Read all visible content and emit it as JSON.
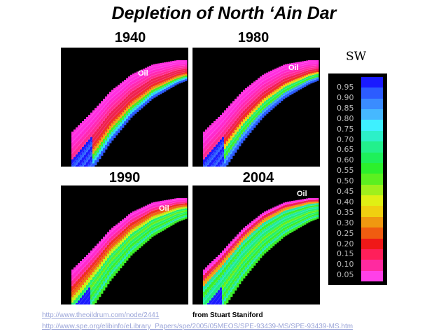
{
  "title": "Depletion of North ‘Ain Dar",
  "panels": [
    {
      "year": "1940",
      "oil_label": "Oil",
      "stage": 0
    },
    {
      "year": "1980",
      "oil_label": "Oil",
      "stage": 1
    },
    {
      "year": "1990",
      "oil_label": "Oil",
      "stage": 2
    },
    {
      "year": "2004",
      "oil_label": "Oil",
      "stage": 3
    }
  ],
  "legend": {
    "title": "SW",
    "ticks": [
      "0.95",
      "0.90",
      "0.85",
      "0.80",
      "0.75",
      "0.70",
      "0.65",
      "0.60",
      "0.55",
      "0.50",
      "0.45",
      "0.40",
      "0.35",
      "0.30",
      "0.25",
      "0.20",
      "0.15",
      "0.10",
      "0.05"
    ],
    "colors": [
      "#1a1aff",
      "#2c5cff",
      "#3a8cff",
      "#46b8ff",
      "#3ef0ff",
      "#2cf0c8",
      "#22f08c",
      "#1ef05a",
      "#2cf02c",
      "#5cf020",
      "#a0f01c",
      "#e0f014",
      "#f0d010",
      "#f09810",
      "#f05c10",
      "#f01818",
      "#ff1f5a",
      "#ff2aa0",
      "#ff40e8"
    ]
  },
  "sources": {
    "link1": "http://www.theoildrum.com/node/2441",
    "credit": "from Stuart Staniford",
    "link2": "http://www.spe.org/elibinfo/eLibrary_Papers/spe/2005/05MEOS/SPE-93439-MS/SPE-93439-MS.htm"
  }
}
